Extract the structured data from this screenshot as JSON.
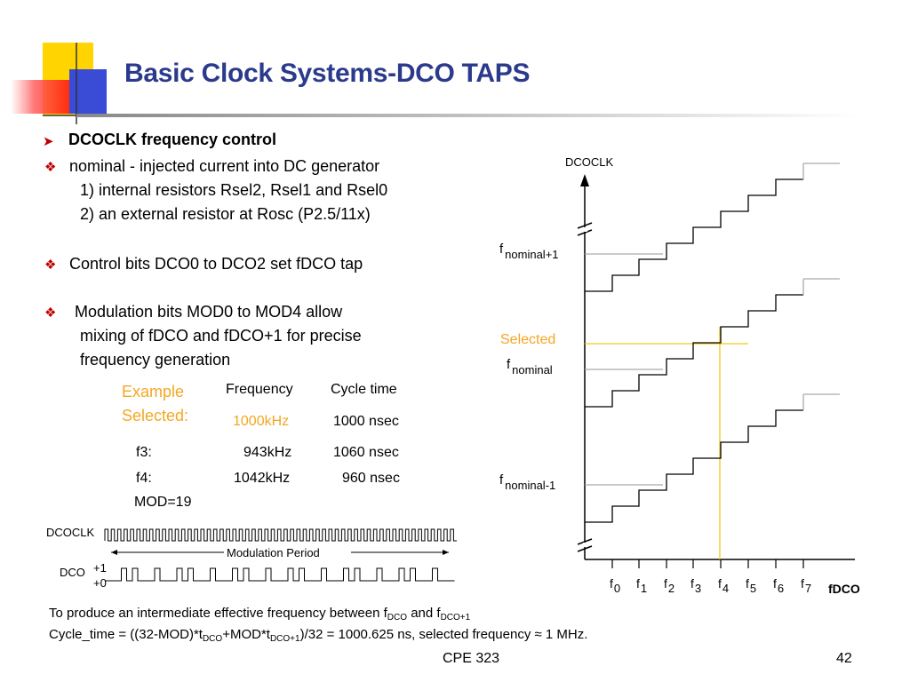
{
  "slide": {
    "title": "Basic Clock Systems-DCO TAPS",
    "footer_center": "CPE 323",
    "footer_page": "42"
  },
  "bullets": {
    "heading": "DCOCLK frequency control",
    "b1": "nominal - injected current into DC generator",
    "b1_sub1": "1) internal resistors Rsel2, Rsel1 and Rsel0",
    "b1_sub2": "2) an external resistor at Rosc (P2.5/11x)",
    "b2": "Control bits DCO0 to DCO2 set fDCO tap",
    "b3_line1": "Modulation bits MOD0 to MOD4 allow",
    "b3_line2": "mixing of fDCO and fDCO+1 for precise",
    "b3_line3": "frequency generation"
  },
  "example_table": {
    "example_line1": "Example",
    "example_line2": "Selected:",
    "col_frequency": "Frequency",
    "col_cycle": "Cycle time",
    "selected_freq": "1000kHz",
    "selected_cycle": "1000 nsec",
    "f3_label": "f3:",
    "f3_freq": "943kHz",
    "f3_cycle": "1060 nsec",
    "f4_label": "f4:",
    "f4_freq": "1042kHz",
    "f4_cycle": "960 nsec",
    "mod": "MOD=19"
  },
  "waveform": {
    "dcoclk_label": "DCOCLK",
    "modulation_period": "Modulation Period",
    "dco_label": "DCO",
    "plus1": "+1",
    "plus0": "+0"
  },
  "dco_chart": {
    "y_label": "DCOCLK",
    "x_label": "fDCO",
    "f_prefix": "f",
    "nominal_plus1": "nominal+1",
    "nominal": "nominal",
    "nominal_minus1": "nominal-1",
    "selected": "Selected",
    "taps": [
      "0",
      "1",
      "2",
      "3",
      "4",
      "5",
      "6",
      "7"
    ]
  },
  "bottom_notes": {
    "line1_a": "To produce an intermediate effective frequency between f",
    "line1_sub1": "DCO",
    "line1_b": " and f",
    "line1_sub2": "DCO+1",
    "line2_a": "Cycle_time = ((32-MOD)*t",
    "line2_sub1": "DCO",
    "line2_b": "+MOD*t",
    "line2_sub2": "DCO+1",
    "line2_c": ")/32 = 1000.625 ns, selected frequency ≈ 1 MHz."
  },
  "colors": {
    "title": "#2b3a8c",
    "bullet": "#c00000",
    "highlight": "#f5a623",
    "deco_yellow": "#ffd400",
    "deco_red": "#ff2a2a",
    "deco_blue": "#3a4bd6"
  }
}
